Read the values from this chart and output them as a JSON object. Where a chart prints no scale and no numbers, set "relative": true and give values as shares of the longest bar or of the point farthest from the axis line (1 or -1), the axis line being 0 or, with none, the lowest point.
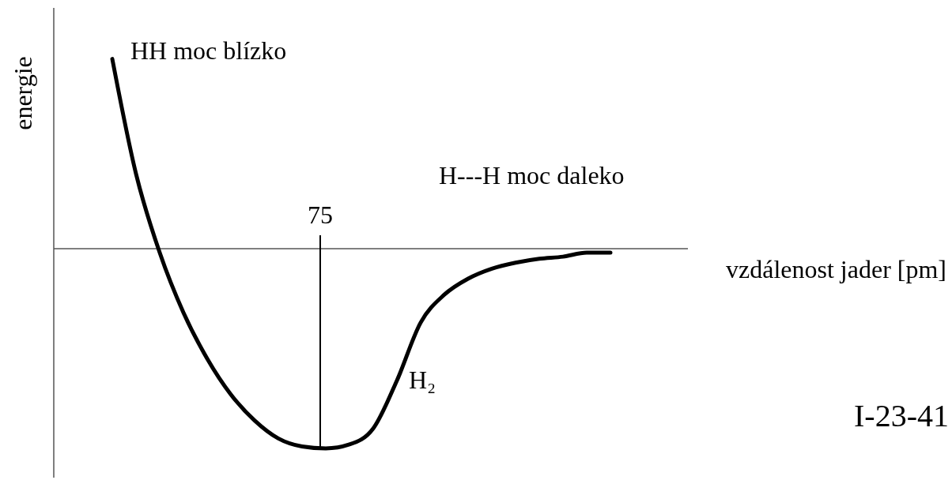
{
  "chart_data": {
    "type": "line",
    "relative": true,
    "ylabel": "energie",
    "xlabel": "vzdálenost jader [pm]",
    "marker": "none",
    "line_style": "solid",
    "categories": [
      null,
      null,
      null,
      null,
      null,
      null,
      null,
      null,
      null,
      null,
      null,
      null,
      null,
      null,
      null,
      null,
      null,
      null,
      null,
      null,
      null,
      null
    ],
    "series": [
      {
        "color": "#000000",
        "values": [
          0.95,
          0.375,
          -0.02,
          -0.32,
          -0.55,
          -0.73,
          -0.86,
          -0.95,
          -0.99,
          -1,
          -0.98,
          -0.9,
          -0.66,
          -0.37,
          -0.23,
          -0.15,
          -0.1,
          -0.07,
          -0.05,
          -0.04,
          -0.02,
          -0.02
        ]
      }
    ],
    "annotations": [
      "HH moc blízko",
      "H---H moc daleko",
      "H₂",
      "I-23-41",
      "75"
    ]
  }
}
